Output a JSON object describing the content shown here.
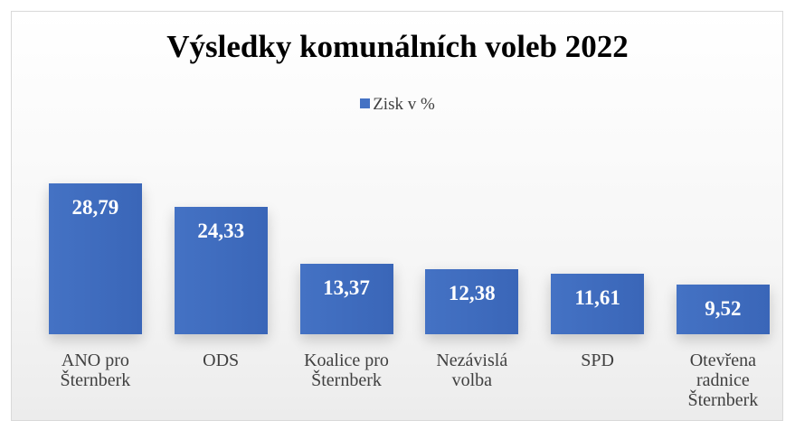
{
  "chart_data": {
    "type": "bar",
    "title": "Výsledky komunálních voleb 2022",
    "categories": [
      "ANO pro Šternberk",
      "ODS",
      "Koalice pro Šternberk",
      "Nezávislá volba",
      "SPD",
      "Otevřena radnice Šternberk"
    ],
    "series": [
      {
        "name": "Zisk v %",
        "color": "#4472c4",
        "values": [
          28.79,
          24.33,
          13.37,
          12.38,
          11.61,
          9.52
        ],
        "value_labels": [
          "28,79",
          "24,33",
          "13,37",
          "12,38",
          "11,61",
          "9,52"
        ]
      }
    ]
  }
}
